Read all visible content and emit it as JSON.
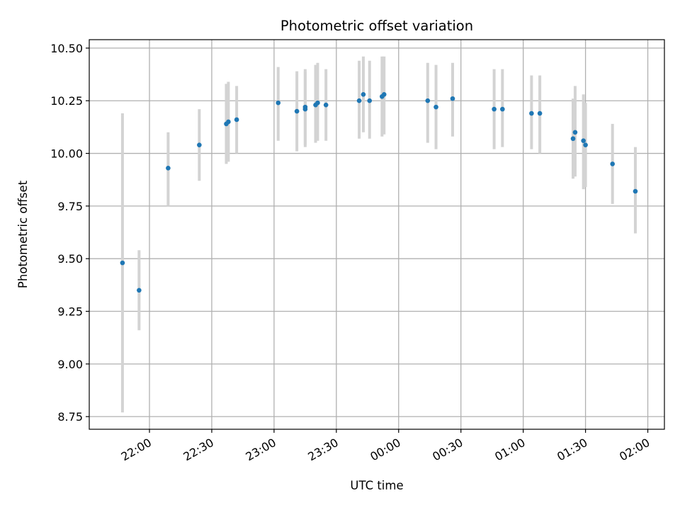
{
  "chart_data": {
    "type": "scatter",
    "title": "Photometric offset variation",
    "xlabel": "UTC time",
    "ylabel": "Photometric offset",
    "x_axis_kind": "time",
    "x_tick_labels": [
      "22:00",
      "22:30",
      "23:00",
      "23:30",
      "00:00",
      "00:30",
      "01:00",
      "01:30",
      "02:00"
    ],
    "x_tick_times": [
      "2000-01-01T22:00",
      "2000-01-01T22:30",
      "2000-01-01T23:00",
      "2000-01-01T23:30",
      "2000-01-02T00:00",
      "2000-01-02T00:30",
      "2000-01-02T01:00",
      "2000-01-02T01:30",
      "2000-01-02T02:00"
    ],
    "x_range": [
      "2000-01-01T21:31",
      "2000-01-02T02:08"
    ],
    "y_ticks": [
      8.75,
      9.0,
      9.25,
      9.5,
      9.75,
      10.0,
      10.25,
      10.5
    ],
    "y_tick_labels": [
      "8.75",
      "9.00",
      "9.25",
      "9.50",
      "9.75",
      "10.00",
      "10.25",
      "10.50"
    ],
    "ylim": [
      8.69,
      10.54
    ],
    "grid": true,
    "legend": "none",
    "colors": {
      "point": "#1f77b4",
      "errorbar": "#d3d3d3",
      "grid": "#b0b0b0"
    },
    "series": [
      {
        "points": [
          {
            "t": "2000-01-01T21:47",
            "y": 9.48,
            "lo": 8.77,
            "hi": 10.19
          },
          {
            "t": "2000-01-01T21:55",
            "y": 9.35,
            "lo": 9.16,
            "hi": 9.54
          },
          {
            "t": "2000-01-01T22:09",
            "y": 9.93,
            "lo": 9.75,
            "hi": 10.1
          },
          {
            "t": "2000-01-01T22:24",
            "y": 10.04,
            "lo": 9.87,
            "hi": 10.21
          },
          {
            "t": "2000-01-01T22:37",
            "y": 10.14,
            "lo": 9.95,
            "hi": 10.33
          },
          {
            "t": "2000-01-01T22:38",
            "y": 10.15,
            "lo": 9.96,
            "hi": 10.34
          },
          {
            "t": "2000-01-01T22:42",
            "y": 10.16,
            "lo": 10.0,
            "hi": 10.32
          },
          {
            "t": "2000-01-01T23:02",
            "y": 10.24,
            "lo": 10.06,
            "hi": 10.41
          },
          {
            "t": "2000-01-01T23:11",
            "y": 10.2,
            "lo": 10.01,
            "hi": 10.39
          },
          {
            "t": "2000-01-01T23:15",
            "y": 10.21,
            "lo": 10.03,
            "hi": 10.39
          },
          {
            "t": "2000-01-01T23:15",
            "y": 10.22,
            "lo": 10.04,
            "hi": 10.4
          },
          {
            "t": "2000-01-01T23:20",
            "y": 10.23,
            "lo": 10.05,
            "hi": 10.42
          },
          {
            "t": "2000-01-01T23:21",
            "y": 10.24,
            "lo": 10.06,
            "hi": 10.43
          },
          {
            "t": "2000-01-01T23:25",
            "y": 10.23,
            "lo": 10.06,
            "hi": 10.4
          },
          {
            "t": "2000-01-01T23:41",
            "y": 10.25,
            "lo": 10.07,
            "hi": 10.44
          },
          {
            "t": "2000-01-01T23:43",
            "y": 10.28,
            "lo": 10.1,
            "hi": 10.46
          },
          {
            "t": "2000-01-01T23:46",
            "y": 10.25,
            "lo": 10.07,
            "hi": 10.44
          },
          {
            "t": "2000-01-01T23:52",
            "y": 10.27,
            "lo": 10.08,
            "hi": 10.46
          },
          {
            "t": "2000-01-01T23:53",
            "y": 10.28,
            "lo": 10.09,
            "hi": 10.46
          },
          {
            "t": "2000-01-02T00:14",
            "y": 10.25,
            "lo": 10.05,
            "hi": 10.43
          },
          {
            "t": "2000-01-02T00:18",
            "y": 10.22,
            "lo": 10.02,
            "hi": 10.42
          },
          {
            "t": "2000-01-02T00:26",
            "y": 10.26,
            "lo": 10.08,
            "hi": 10.43
          },
          {
            "t": "2000-01-02T00:46",
            "y": 10.21,
            "lo": 10.02,
            "hi": 10.4
          },
          {
            "t": "2000-01-02T00:50",
            "y": 10.21,
            "lo": 10.03,
            "hi": 10.4
          },
          {
            "t": "2000-01-02T01:04",
            "y": 10.19,
            "lo": 10.02,
            "hi": 10.37
          },
          {
            "t": "2000-01-02T01:08",
            "y": 10.19,
            "lo": 10.0,
            "hi": 10.37
          },
          {
            "t": "2000-01-02T01:24",
            "y": 10.07,
            "lo": 9.88,
            "hi": 10.26
          },
          {
            "t": "2000-01-02T01:25",
            "y": 10.1,
            "lo": 9.89,
            "hi": 10.32
          },
          {
            "t": "2000-01-02T01:29",
            "y": 10.06,
            "lo": 9.83,
            "hi": 10.28
          },
          {
            "t": "2000-01-02T01:30",
            "y": 10.04,
            "lo": 9.84,
            "hi": 10.24
          },
          {
            "t": "2000-01-02T01:43",
            "y": 9.95,
            "lo": 9.76,
            "hi": 10.14
          },
          {
            "t": "2000-01-02T01:54",
            "y": 9.82,
            "lo": 9.62,
            "hi": 10.03
          }
        ]
      }
    ]
  }
}
